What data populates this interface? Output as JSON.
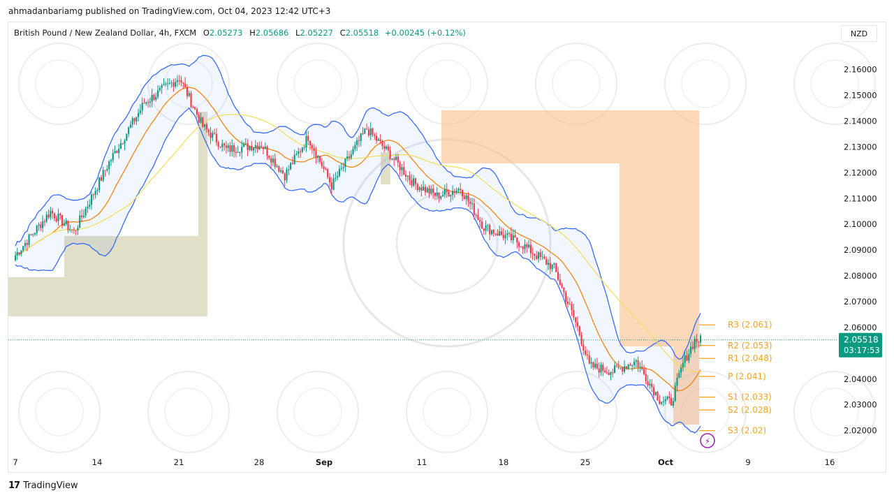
{
  "header": {
    "published_line": "ahmadanbariamg published on TradingView.com, Oct 04, 2023 12:42 UTC+3"
  },
  "legend": {
    "symbol": "British Pound / New Zealand Dollar, 4h, FXCM",
    "open_label": "O",
    "open": "2.05273",
    "high_label": "H",
    "high": "2.05686",
    "low_label": "L",
    "low": "2.05227",
    "close_label": "C",
    "close": "2.05518",
    "change": "+0.00245 (+0.12%)"
  },
  "currency_button": "NZD",
  "price_tag": {
    "price": "2.05518",
    "countdown": "03:17:53"
  },
  "footer": {
    "brand": "TradingView",
    "logo_glyph": "17"
  },
  "colors": {
    "up": "#089981",
    "down": "#f23645",
    "band": "#2962ff",
    "basis": "#f57c00",
    "ma": "#ffeb3b",
    "pivot": "#f7a21b",
    "olive": "#c8c59a",
    "orange": "#fbc08a"
  },
  "chart_data": {
    "type": "candlestick",
    "x_ticks": [
      "7",
      "14",
      "21",
      "28",
      "Sep",
      "11",
      "18",
      "25",
      "Oct",
      "9",
      "16"
    ],
    "y_ticks": [
      "2.16000",
      "2.15000",
      "2.14000",
      "2.13000",
      "2.12000",
      "2.11000",
      "2.10000",
      "2.09000",
      "2.08000",
      "2.07000",
      "2.06000",
      "2.05000",
      "2.04000",
      "2.03000",
      "2.02000"
    ],
    "ylim": [
      2.0115,
      2.1675
    ],
    "current_price": 2.05518,
    "pivots": [
      {
        "label": "R3 (2.061)",
        "value": 2.061
      },
      {
        "label": "R2 (2.053)",
        "value": 2.053
      },
      {
        "label": "R1 (2.048)",
        "value": 2.048
      },
      {
        "label": "P (2.041)",
        "value": 2.041
      },
      {
        "label": "S1 (2.033)",
        "value": 2.033
      },
      {
        "label": "S2 (2.028)",
        "value": 2.028
      },
      {
        "label": "S3 (2.02)",
        "value": 2.02
      }
    ],
    "path_keypoints": [
      {
        "date": "Aug 7",
        "price": 2.088
      },
      {
        "date": "Aug 10",
        "price": 2.105
      },
      {
        "date": "Aug 12",
        "price": 2.097
      },
      {
        "date": "Aug 15",
        "price": 2.124
      },
      {
        "date": "Aug 18",
        "price": 2.147
      },
      {
        "date": "Aug 21",
        "price": 2.157
      },
      {
        "date": "Aug 23",
        "price": 2.138
      },
      {
        "date": "Aug 25",
        "price": 2.129
      },
      {
        "date": "Aug 28",
        "price": 2.131
      },
      {
        "date": "Aug 30",
        "price": 2.119
      },
      {
        "date": "Sep 1",
        "price": 2.134
      },
      {
        "date": "Sep 3",
        "price": 2.115
      },
      {
        "date": "Sep 6",
        "price": 2.137
      },
      {
        "date": "Sep 8",
        "price": 2.127
      },
      {
        "date": "Sep 10",
        "price": 2.116
      },
      {
        "date": "Sep 12",
        "price": 2.111
      },
      {
        "date": "Sep 14",
        "price": 2.114
      },
      {
        "date": "Sep 16",
        "price": 2.099
      },
      {
        "date": "Sep 19",
        "price": 2.093
      },
      {
        "date": "Sep 22",
        "price": 2.083
      },
      {
        "date": "Sep 24",
        "price": 2.06
      },
      {
        "date": "Sep 25",
        "price": 2.045
      },
      {
        "date": "Sep 27",
        "price": 2.043
      },
      {
        "date": "Sep 29",
        "price": 2.047
      },
      {
        "date": "Oct 1",
        "price": 2.032
      },
      {
        "date": "Oct 2",
        "price": 2.031
      },
      {
        "date": "Oct 3",
        "price": 2.046
      },
      {
        "date": "Oct 4",
        "price": 2.055
      }
    ]
  }
}
